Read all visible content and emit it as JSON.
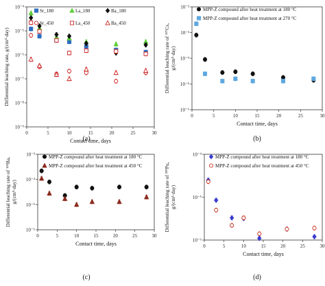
{
  "chart_data": [
    {
      "panel": "(a)",
      "type": "scatter",
      "title": "",
      "xlabel": "Contact time, days",
      "ylabel": "Differential leaching rate, g/(cm²·day)",
      "xlim": [
        0,
        30
      ],
      "ylim_log10": [
        -9,
        -4
      ],
      "log_y": true,
      "grid": false,
      "legend_position": "top",
      "xticks": [
        "0",
        "5",
        "10",
        "15",
        "20",
        "25",
        "30"
      ],
      "yticks": [
        "10⁻⁹",
        "10⁻⁸",
        "10⁻⁷",
        "10⁻⁶",
        "10⁻⁵",
        "10⁻⁴"
      ],
      "series": [
        {
          "name": "Sr_180",
          "color": "#2f6ec0",
          "marker": "square",
          "x": [
            1,
            3,
            7,
            10,
            14,
            21,
            28
          ],
          "y": [
            1.2e-05,
            6e-06,
            4e-06,
            3.5e-06,
            2.2e-06,
            1.6e-06,
            1.3e-06
          ]
        },
        {
          "name": "La_180",
          "color": "#5fcf3a",
          "marker": "triangle",
          "x": [
            1,
            3,
            7,
            10,
            14,
            21,
            28
          ],
          "y": [
            5.5e-05,
            1.3e-05,
            5.5e-06,
            5e-06,
            3.5e-06,
            2.8e-06,
            3.5e-06
          ]
        },
        {
          "name": "Ba_180",
          "color": "#111111",
          "marker": "diamond",
          "x": [
            1,
            3,
            7,
            10,
            14,
            21,
            28
          ],
          "y": [
            3.5e-05,
            1.6e-05,
            7e-06,
            6e-06,
            3e-06,
            1.2e-06,
            2.6e-06
          ]
        },
        {
          "name": "Sr_450",
          "color": "#cc2222",
          "marker": "circle-open",
          "x": [
            1,
            3,
            7,
            10,
            14,
            21,
            28
          ],
          "y": [
            6.5e-06,
            3.2e-07,
            1.6e-07,
            2.1e-07,
            1.8e-07,
            8e-08,
            1.8e-07
          ]
        },
        {
          "name": "La_450",
          "color": "#cc2222",
          "marker": "square-open",
          "x": [
            1,
            3,
            7,
            10,
            14,
            21,
            28
          ],
          "y": [
            2.2e-05,
            9.5e-06,
            4e-06,
            1.2e-06,
            1.5e-06,
            1.4e-06,
            1.1e-06
          ]
        },
        {
          "name": "Ba_450",
          "color": "#cc2222",
          "marker": "triangle-open",
          "x": [
            1,
            3,
            7,
            10,
            14,
            21,
            28
          ],
          "y": [
            6.5e-07,
            3.5e-07,
            1.5e-07,
            1e-07,
            2.5e-07,
            1.8e-07,
            2.2e-07
          ]
        }
      ]
    },
    {
      "panel": "(b)",
      "type": "scatter",
      "title": "",
      "xlabel": "Contact time, days",
      "ylabel": "Differential leaching rate of ¹³⁷Cs, g/(cm²·day)",
      "xlim": [
        0,
        30
      ],
      "ylim_log10": [
        -6,
        -2
      ],
      "log_y": true,
      "grid": false,
      "legend_position": "top",
      "xticks": [
        "0",
        "5",
        "10",
        "15",
        "20",
        "25",
        "30"
      ],
      "yticks": [
        "10⁻⁶",
        "10⁻⁵",
        "10⁻⁴",
        "10⁻³",
        "10⁻²"
      ],
      "series": [
        {
          "name": "MPP-Z compound after heat treatment at 180 °C",
          "color": "#111111",
          "marker": "circle",
          "x": [
            1,
            3,
            7,
            10,
            14,
            21,
            28
          ],
          "y": [
            0.0008,
            9e-05,
            2.8e-05,
            3e-05,
            2.5e-05,
            1.8e-05,
            1.4e-05
          ]
        },
        {
          "name": "MPP-Z compound after heat treatment at 270 °C",
          "color": "#5fa8e0",
          "marker": "square",
          "x": [
            1,
            3,
            7,
            10,
            14,
            21,
            28
          ],
          "y": [
            0.0022,
            2.5e-05,
            1.3e-05,
            1.6e-05,
            1.3e-05,
            1.3e-05,
            1.6e-05
          ]
        }
      ]
    },
    {
      "panel": "(c)",
      "type": "scatter",
      "title": "",
      "xlabel": "Contact time, days",
      "ylabel": "Differential leaching rate of ¹³³Ba, g/(cm²·day)",
      "xlim": [
        0,
        30
      ],
      "ylim_log10": [
        -6,
        -3
      ],
      "log_y": true,
      "grid": false,
      "legend_position": "top",
      "xticks": [
        "0",
        "5",
        "10",
        "15",
        "20",
        "25",
        "30"
      ],
      "yticks": [
        "10⁻⁶",
        "10⁻⁵",
        "10⁻⁴",
        "10⁻³"
      ],
      "series": [
        {
          "name": "MPP-Z compound after heat treatment at 180 °C",
          "color": "#111111",
          "marker": "circle",
          "x": [
            1,
            3,
            7,
            10,
            14,
            21,
            28
          ],
          "y": [
            0.00022,
            8e-05,
            2.3e-05,
            5e-05,
            4.5e-05,
            5e-05,
            5e-05
          ]
        },
        {
          "name": "MPP-Z compound after heat treatment at 450 °C",
          "color": "#8b2a1e",
          "marker": "triangle",
          "x": [
            1,
            3,
            7,
            10,
            14,
            21,
            28
          ],
          "y": [
            0.00011,
            2.8e-05,
            1.7e-05,
            1e-05,
            1.3e-05,
            1.3e-05,
            2e-05
          ]
        }
      ]
    },
    {
      "panel": "(d)",
      "type": "scatter",
      "title": "",
      "xlabel": "Contact time, days",
      "ylabel": "Differential leaching rate of ²³⁹Pu, g/(cm²·day)",
      "xlim": [
        0,
        30
      ],
      "ylim_log10": [
        -6,
        -4
      ],
      "log_y": true,
      "grid": false,
      "legend_position": "top",
      "xticks": [
        "0",
        "5",
        "10",
        "15",
        "20",
        "25",
        "30"
      ],
      "yticks": [
        "10⁻⁶",
        "10⁻⁵",
        "10⁻⁴"
      ],
      "series": [
        {
          "name": "MPP-Z compound after heat treatment at 180 °C",
          "color": "#3a3ad0",
          "marker": "diamond",
          "x": [
            1,
            3,
            7,
            10,
            14,
            21,
            28
          ],
          "y": [
            2.5e-05,
            8.5e-06,
            3.3e-06,
            3.2e-06,
            1.1e-06,
            1.8e-06,
            1.2e-06
          ]
        },
        {
          "name": "MPP-Z compound after heat treatment at 450 °C",
          "color": "#cc3322",
          "marker": "circle-open",
          "x": [
            1,
            3,
            7,
            10,
            14,
            21,
            28
          ],
          "y": [
            2.3e-05,
            5e-06,
            2.2e-06,
            3.3e-06,
            1.4e-06,
            1.8e-06,
            1.9e-06
          ]
        }
      ]
    }
  ]
}
